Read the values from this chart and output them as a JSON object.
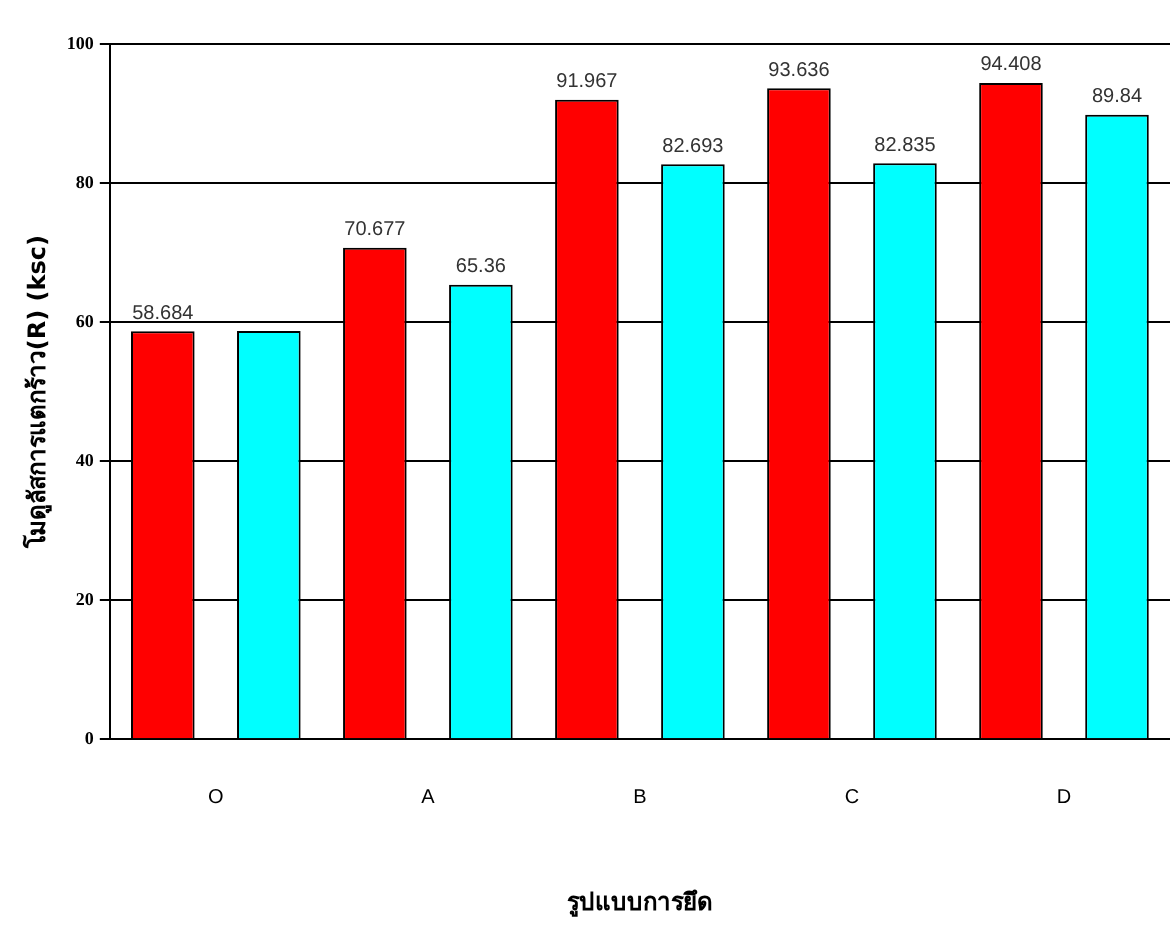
{
  "chart_data": {
    "type": "bar",
    "xlabel": "รูปแบบการยึด",
    "ylabel": "โมดูลัสการแตกร้าว(R) (ksc)",
    "categories": [
      "O",
      "A",
      "B",
      "C",
      "D"
    ],
    "series": [
      {
        "color": "#ff0000",
        "values": [
          58.684,
          70.677,
          91.967,
          93.636,
          94.408
        ],
        "value_labels": [
          "58.684",
          "70.677",
          "91.967",
          "93.636",
          "94.408"
        ]
      },
      {
        "color": "#00ffff",
        "values": [
          58.7,
          65.36,
          82.693,
          82.835,
          89.84
        ],
        "value_labels": [
          null,
          "65.36",
          "82.693",
          "82.835",
          "89.84"
        ]
      }
    ],
    "ylim": [
      0,
      100
    ],
    "yticks": [
      0,
      20,
      40,
      60,
      80,
      100
    ],
    "grid": "y",
    "legend": false
  }
}
